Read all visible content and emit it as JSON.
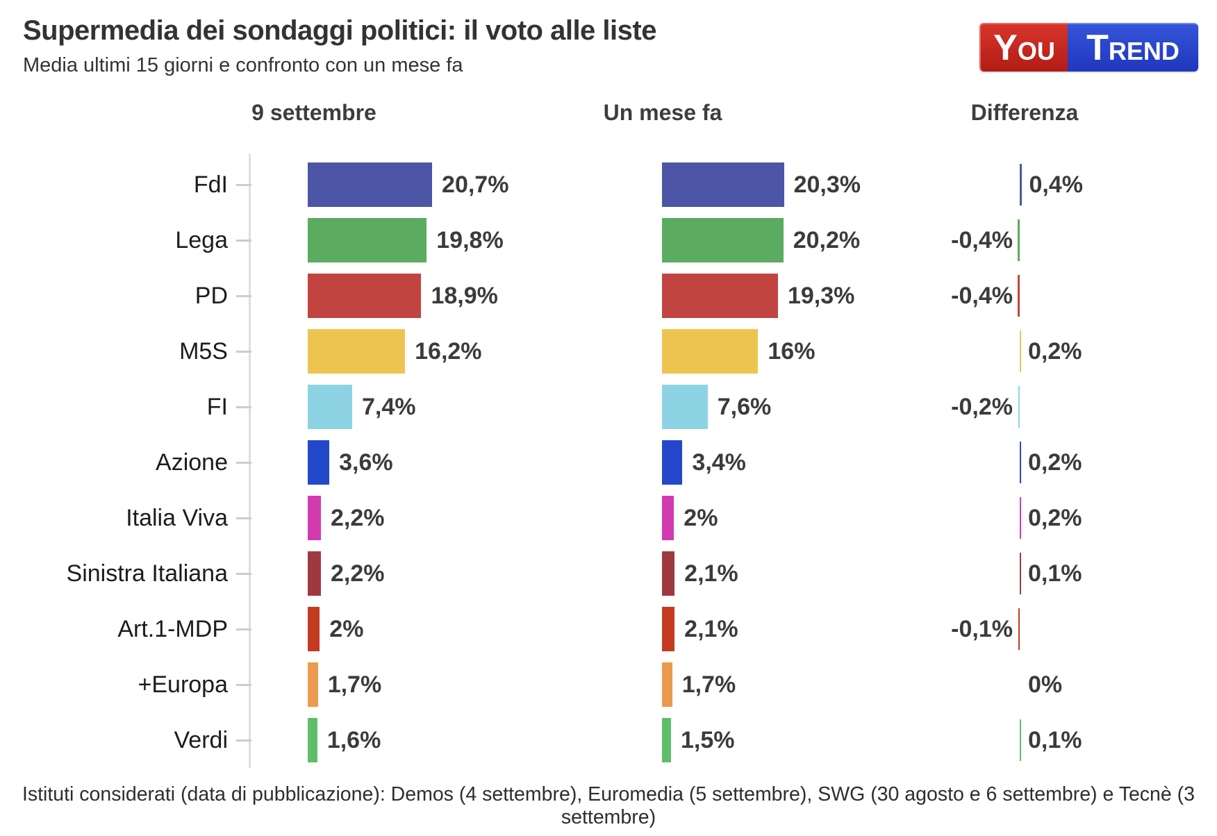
{
  "header": {
    "title": "Supermedia dei sondaggi politici: il voto alle liste",
    "subtitle": "Media ultimi 15 giorni e confronto con un mese fa"
  },
  "logo": {
    "part1": "You",
    "part2": "Trend",
    "part1_bg": "#c1221b",
    "part2_bg": "#2743d0"
  },
  "columns": [
    "9 settembre",
    "Un mese fa",
    "Differenza"
  ],
  "footer": "Istituti considerati (data di pubblicazione): Demos (4 settembre), Euromedia (5 settembre), SWG (30 agosto e 6 settembre) e Tecnè (3 settembre)",
  "chart_data": {
    "type": "bar",
    "orientation": "horizontal",
    "value_unit": "%",
    "categories": [
      "FdI",
      "Lega",
      "PD",
      "M5S",
      "FI",
      "Azione",
      "Italia Viva",
      "Sinistra Italiana",
      "Art.1-MDP",
      "+Europa",
      "Verdi"
    ],
    "colors": [
      "#4d56a6",
      "#5bab60",
      "#c24441",
      "#eec451",
      "#8ed3e4",
      "#2448cc",
      "#d23ab0",
      "#9e3940",
      "#c53b22",
      "#ea9b4d",
      "#5fbe69"
    ],
    "series": [
      {
        "name": "9 settembre",
        "values": [
          20.7,
          19.8,
          18.9,
          16.2,
          7.4,
          3.6,
          2.2,
          2.2,
          2.0,
          1.7,
          1.6
        ],
        "labels": [
          "20,7%",
          "19,8%",
          "18,9%",
          "16,2%",
          "7,4%",
          "3,6%",
          "2,2%",
          "2,2%",
          "2%",
          "1,7%",
          "1,6%"
        ]
      },
      {
        "name": "Un mese fa",
        "values": [
          20.3,
          20.2,
          19.3,
          16.0,
          7.6,
          3.4,
          2.0,
          2.1,
          2.1,
          1.7,
          1.5
        ],
        "labels": [
          "20,3%",
          "20,2%",
          "19,3%",
          "16%",
          "7,6%",
          "3,4%",
          "2%",
          "2,1%",
          "2,1%",
          "1,7%",
          "1,5%"
        ]
      },
      {
        "name": "Differenza",
        "values": [
          0.4,
          -0.4,
          -0.4,
          0.2,
          -0.2,
          0.2,
          0.2,
          0.1,
          -0.1,
          0,
          0.1
        ],
        "labels": [
          "0,4%",
          "-0,4%",
          "-0,4%",
          "0,2%",
          "-0,2%",
          "0,2%",
          "0,2%",
          "0,1%",
          "-0,1%",
          "0%",
          "0,1%"
        ]
      }
    ],
    "axis": {
      "grid": false,
      "baseline_color": "#dedede"
    }
  }
}
